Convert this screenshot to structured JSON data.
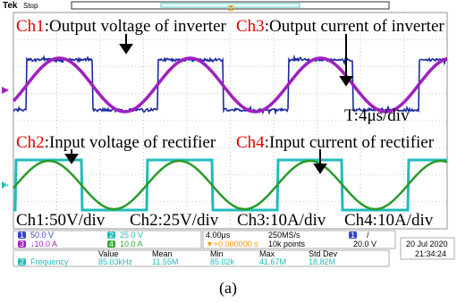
{
  "top_bar": {
    "brand": "Tek",
    "status": "Stop"
  },
  "annotations": {
    "ch1": {
      "channel": "Ch1",
      "text": ":Output voltage of inverter"
    },
    "ch3": {
      "channel": "Ch3",
      "text": ":Output current of inverter"
    },
    "ch2": {
      "channel": "Ch2",
      "text": ":Input voltage of rectifier"
    },
    "ch4": {
      "channel": "Ch4",
      "text": ":Input current of rectifier"
    },
    "timebase": "T:4μs/div",
    "scales": [
      "Ch1:50V/div",
      "Ch2:25V/div",
      "Ch3:10A/div",
      "Ch4:10A/div"
    ]
  },
  "channels": [
    {
      "number": "1",
      "setting": "50.0 V"
    },
    {
      "number": "2",
      "setting": "25.0 V"
    },
    {
      "number": "3",
      "setting": "↓10.0 A"
    },
    {
      "number": "4",
      "setting": "10.0 A"
    }
  ],
  "horizontal": {
    "scale": "4.00μs",
    "rate": "250MS/s",
    "position": "▼+0.000000 s",
    "points": "10k points"
  },
  "trigger": {
    "source": "1",
    "slope": "/",
    "level": "20.0 V"
  },
  "datetime": {
    "date": "20 Jul  2020",
    "time": "21:34:24"
  },
  "measurements": {
    "headers": [
      "Value",
      "Mean",
      "Min",
      "Max",
      "Std Dev"
    ],
    "rows": [
      {
        "channel": "2",
        "name": "Frequency",
        "cells": [
          "85.03kHz",
          "11.55M",
          "85.02k",
          "41.67M",
          "18.82M"
        ]
      }
    ]
  },
  "caption": "(a)"
}
